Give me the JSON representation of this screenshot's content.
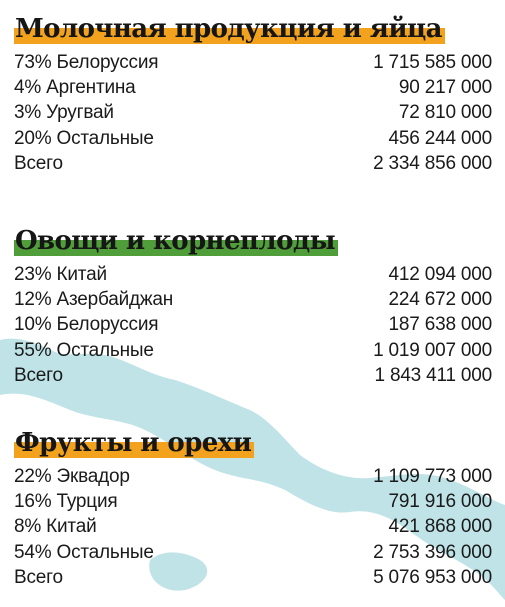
{
  "colors": {
    "dairy_highlight": "#f2a21c",
    "vegetables_highlight": "#4f9e3a",
    "fruits_highlight": "#f2a21c",
    "map_water": "#bfe3e7"
  },
  "sections": [
    {
      "title": "Молочная продукция и яйца",
      "rows": [
        {
          "label": "73% Белоруссия",
          "value": "1 715 585 000"
        },
        {
          "label": "4% Аргентина",
          "value": "90 217 000"
        },
        {
          "label": "3% Уругвай",
          "value": "72 810 000"
        },
        {
          "label": "20% Остальные",
          "value": "456 244 000"
        },
        {
          "label": "Всего",
          "value": "2 334 856 000"
        }
      ]
    },
    {
      "title": "Овощи и корнеплоды",
      "rows": [
        {
          "label": "23% Китай",
          "value": "412 094 000"
        },
        {
          "label": "12% Азербайджан",
          "value": "224 672 000"
        },
        {
          "label": "10% Белоруссия",
          "value": "187 638 000"
        },
        {
          "label": "55% Остальные",
          "value": "1 019 007 000"
        },
        {
          "label": "Всего",
          "value": "1 843 411 000"
        }
      ]
    },
    {
      "title": "Фрукты и орехи",
      "rows": [
        {
          "label": "22% Эквадор",
          "value": "1 109 773 000"
        },
        {
          "label": "16% Турция",
          "value": "791 916 000"
        },
        {
          "label": "8% Китай",
          "value": "421 868 000"
        },
        {
          "label": "54% Остальные",
          "value": "2 753 396 000"
        },
        {
          "label": "Всего",
          "value": "5 076 953 000"
        }
      ]
    }
  ]
}
